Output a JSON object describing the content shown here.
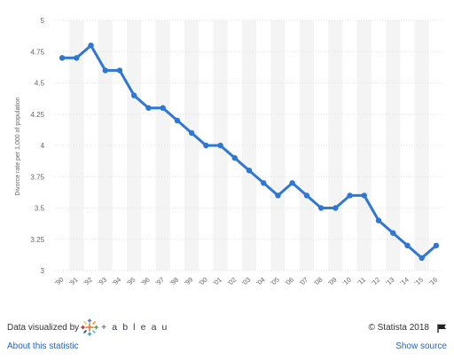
{
  "chart_data": {
    "type": "line",
    "ylabel": "Divorce rate per 1,000 of population",
    "ylim": [
      3,
      5
    ],
    "yticks": [
      "3",
      "3.25",
      "3.5",
      "3.75",
      "4",
      "4.25",
      "4.5",
      "4.75",
      "5"
    ],
    "grid": true,
    "categories": [
      "'90",
      "'91",
      "'92",
      "'93",
      "'94",
      "'95",
      "'96",
      "'97",
      "'98",
      "'99",
      "'00",
      "'01",
      "'02",
      "'03",
      "'04",
      "'05",
      "'06",
      "'07",
      "'08",
      "'09",
      "'10",
      "'11",
      "'12",
      "'13",
      "'14",
      "'15",
      "'16"
    ],
    "series": [
      {
        "values": [
          4.7,
          4.7,
          4.8,
          4.6,
          4.6,
          4.4,
          4.3,
          4.3,
          4.2,
          4.1,
          4.0,
          4.0,
          3.9,
          3.8,
          3.7,
          3.6,
          3.7,
          3.6,
          3.5,
          3.5,
          3.6,
          3.6,
          3.4,
          3.3,
          3.2,
          3.1,
          3.2
        ],
        "color": "#2f77d5"
      }
    ]
  },
  "footer": {
    "data_visualized_by": "Data visualized by",
    "tableau_word": "+ a b l e a u",
    "copyright": "© Statista 2018",
    "about_link": "About this statistic",
    "show_source_link": "Show source",
    "flag_icon": "flag-icon",
    "tableau_icon": "tableau-logo-icon"
  }
}
